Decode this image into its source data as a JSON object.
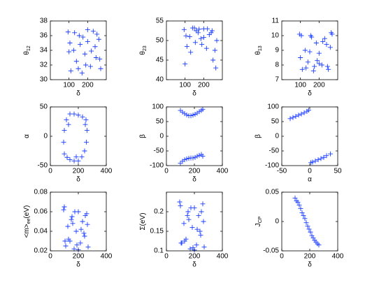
{
  "chart_data": [
    {
      "type": "scatter",
      "xlabel": "δ",
      "ylabel": [
        {
          "text": "θ"
        },
        {
          "text": "12",
          "sub": true
        }
      ],
      "color": "#1a3cff",
      "xlim": [
        0,
        300
      ],
      "xticks": [
        100,
        200
      ],
      "ylim": [
        30,
        38
      ],
      "yticks": [
        30,
        32,
        34,
        36,
        38
      ],
      "x": [
        95,
        110,
        125,
        140,
        155,
        170,
        185,
        200,
        215,
        230,
        245,
        260,
        270,
        100,
        130,
        160,
        190,
        220,
        250,
        105,
        150,
        200,
        240,
        265,
        175
      ],
      "y": [
        36.5,
        31.2,
        34.0,
        32.5,
        36.0,
        30.9,
        33.5,
        35.2,
        31.8,
        36.6,
        33.0,
        35.5,
        31.5,
        33.8,
        36.4,
        34.8,
        32.0,
        33.9,
        36.2,
        35.0,
        31.5,
        36.8,
        34.5,
        32.8,
        35.8
      ]
    },
    {
      "type": "scatter",
      "xlabel": "δ",
      "ylabel": [
        {
          "text": "θ"
        },
        {
          "text": "23",
          "sub": true
        }
      ],
      "color": "#1a3cff",
      "xlim": [
        0,
        300
      ],
      "xticks": [
        100,
        200
      ],
      "ylim": [
        40,
        55
      ],
      "yticks": [
        40,
        45,
        50,
        55
      ],
      "x": [
        95,
        110,
        125,
        140,
        155,
        170,
        185,
        200,
        215,
        230,
        245,
        260,
        270,
        100,
        130,
        160,
        190,
        220,
        250,
        105,
        150,
        200,
        240,
        265,
        175
      ],
      "y": [
        52.8,
        48.5,
        51.0,
        53.2,
        49.5,
        52.0,
        50.5,
        53.0,
        48.0,
        51.5,
        52.5,
        47.5,
        50.0,
        44.0,
        47.0,
        52.5,
        49.0,
        53.0,
        45.0,
        51.2,
        53.2,
        50.8,
        52.0,
        43.0,
        52.9
      ]
    },
    {
      "type": "scatter",
      "xlabel": "δ",
      "ylabel": [
        {
          "text": "θ"
        },
        {
          "text": "13",
          "sub": true
        }
      ],
      "color": "#1a3cff",
      "xlim": [
        0,
        300
      ],
      "xticks": [
        100,
        200
      ],
      "ylim": [
        7,
        11
      ],
      "yticks": [
        7,
        8,
        9,
        10,
        11
      ],
      "x": [
        95,
        110,
        125,
        140,
        155,
        170,
        185,
        200,
        215,
        230,
        245,
        260,
        270,
        100,
        130,
        160,
        190,
        220,
        250,
        105,
        150,
        200,
        240,
        265,
        175
      ],
      "y": [
        10.1,
        7.7,
        9.0,
        8.2,
        10.0,
        7.6,
        9.5,
        8.8,
        8.0,
        9.8,
        7.9,
        9.2,
        10.1,
        8.5,
        7.8,
        9.9,
        8.3,
        9.6,
        7.7,
        10.0,
        8.9,
        8.1,
        9.4,
        10.2,
        7.9
      ]
    },
    {
      "type": "scatter",
      "xlabel": "δ",
      "ylabel": [
        {
          "text": "α"
        }
      ],
      "color": "#1a3cff",
      "xlim": [
        0,
        400
      ],
      "xticks": [
        0,
        200,
        400
      ],
      "ylim": [
        -50,
        50
      ],
      "yticks": [
        -50,
        0,
        50
      ],
      "x": [
        100,
        95,
        100,
        115,
        140,
        170,
        200,
        230,
        255,
        262,
        258,
        245,
        225,
        200,
        170,
        140,
        120,
        130,
        185,
        250
      ],
      "y": [
        -30,
        -10,
        10,
        28,
        38,
        38,
        36,
        33,
        28,
        10,
        -10,
        -25,
        -35,
        -42,
        -42,
        -40,
        -36,
        20,
        -35,
        20
      ]
    },
    {
      "type": "scatter",
      "xlabel": "δ",
      "ylabel": [
        {
          "text": "β"
        }
      ],
      "color": "#1a3cff",
      "xlim": [
        0,
        400
      ],
      "xticks": [
        0,
        200,
        400
      ],
      "ylim": [
        -100,
        100
      ],
      "yticks": [
        -100,
        -50,
        0,
        50,
        100
      ],
      "x": [
        100,
        115,
        130,
        145,
        160,
        175,
        190,
        205,
        220,
        235,
        250,
        260,
        100,
        115,
        130,
        145,
        160,
        175,
        190,
        205,
        220,
        235,
        250,
        260
      ],
      "y": [
        88,
        82,
        77,
        73,
        70,
        70,
        72,
        75,
        79,
        84,
        88,
        92,
        -92,
        -85,
        -80,
        -77,
        -75,
        -74,
        -74,
        -72,
        -68,
        -65,
        -62,
        -68
      ]
    },
    {
      "type": "scatter",
      "xlabel": "α",
      "ylabel": [
        {
          "text": "β"
        }
      ],
      "color": "#1a3cff",
      "xlim": [
        -50,
        50
      ],
      "xticks": [
        -50,
        0,
        50
      ],
      "ylim": [
        -100,
        100
      ],
      "yticks": [
        -100,
        -50,
        0,
        50,
        100
      ],
      "x": [
        -35,
        -30,
        -25,
        -20,
        -15,
        -10,
        -5,
        -2,
        2,
        5,
        10,
        15,
        20,
        25,
        30,
        37
      ],
      "y": [
        60,
        64,
        68,
        72,
        76,
        80,
        85,
        89,
        -90,
        -88,
        -84,
        -80,
        -76,
        -72,
        -66,
        -60
      ]
    },
    {
      "type": "scatter",
      "xlabel": "δ",
      "ylabel": [
        {
          "text": "<m>"
        },
        {
          "text": "ee",
          "sub": true
        },
        {
          "text": "(eV)"
        }
      ],
      "color": "#1a3cff",
      "xlim": [
        0,
        400
      ],
      "xticks": [
        0,
        200,
        400
      ],
      "ylim": [
        0.02,
        0.08
      ],
      "yticks": [
        0.02,
        0.04,
        0.06,
        0.08
      ],
      "x": [
        95,
        110,
        125,
        140,
        155,
        170,
        185,
        200,
        215,
        230,
        245,
        260,
        270,
        100,
        130,
        160,
        190,
        220,
        250,
        105,
        150,
        200,
        240,
        265,
        175
      ],
      "y": [
        0.062,
        0.025,
        0.045,
        0.03,
        0.055,
        0.022,
        0.04,
        0.06,
        0.028,
        0.05,
        0.035,
        0.058,
        0.024,
        0.065,
        0.032,
        0.048,
        0.026,
        0.042,
        0.056,
        0.03,
        0.052,
        0.021,
        0.038,
        0.047,
        0.06
      ]
    },
    {
      "type": "scatter",
      "xlabel": "δ",
      "ylabel": [
        {
          "text": "Σ(eV)"
        }
      ],
      "color": "#1a3cff",
      "xlim": [
        0,
        400
      ],
      "xticks": [
        0,
        200,
        400
      ],
      "ylim": [
        0.1,
        0.25
      ],
      "yticks": [
        0.1,
        0.15,
        0.2
      ],
      "x": [
        95,
        110,
        125,
        140,
        155,
        170,
        185,
        200,
        215,
        230,
        245,
        260,
        270,
        100,
        130,
        160,
        190,
        220,
        250,
        105,
        150,
        200,
        240,
        265,
        175
      ],
      "y": [
        0.225,
        0.12,
        0.17,
        0.13,
        0.2,
        0.105,
        0.16,
        0.21,
        0.115,
        0.19,
        0.14,
        0.22,
        0.11,
        0.215,
        0.125,
        0.18,
        0.108,
        0.155,
        0.2,
        0.12,
        0.19,
        0.102,
        0.15,
        0.175,
        0.21
      ]
    },
    {
      "type": "scatter",
      "xlabel": "δ",
      "ylabel": [
        {
          "text": "J"
        },
        {
          "text": "CP",
          "sub": true
        }
      ],
      "color": "#1a3cff",
      "xlim": [
        0,
        400
      ],
      "xticks": [
        0,
        200,
        400
      ],
      "ylim": [
        -0.05,
        0.05
      ],
      "yticks": [
        -0.05,
        0,
        0.05
      ],
      "x": [
        95,
        105,
        115,
        125,
        135,
        145,
        155,
        165,
        175,
        185,
        195,
        205,
        215,
        225,
        235,
        245,
        255,
        265
      ],
      "y": [
        0.04,
        0.035,
        0.033,
        0.028,
        0.022,
        0.015,
        0.01,
        0.005,
        -0.002,
        -0.008,
        -0.013,
        -0.018,
        -0.024,
        -0.028,
        -0.032,
        -0.035,
        -0.038,
        -0.04
      ]
    }
  ]
}
